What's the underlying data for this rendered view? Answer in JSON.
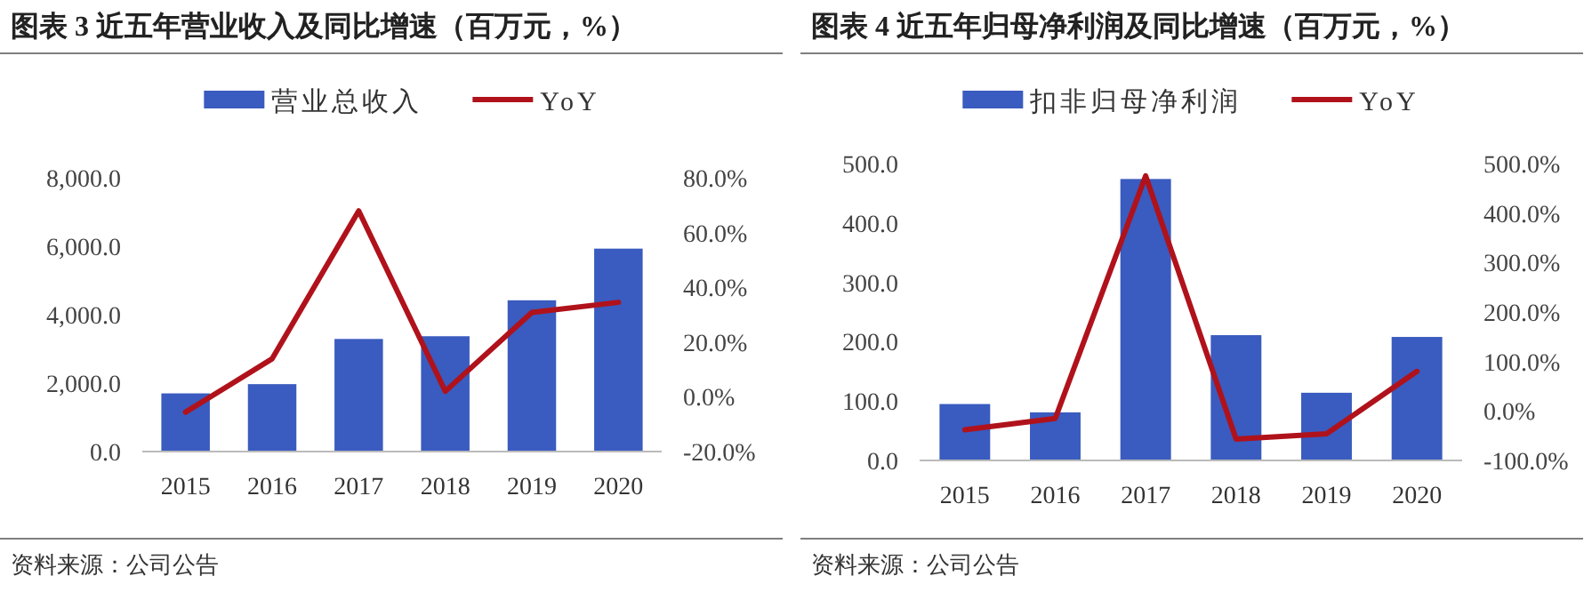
{
  "chart_data": [
    {
      "type": "bar",
      "title": "图表 3  近五年营业收入及同比增速（百万元，%）",
      "categories": [
        "2015",
        "2016",
        "2017",
        "2018",
        "2019",
        "2020"
      ],
      "series": [
        {
          "name": "营业总收入",
          "color": "#3a5bbf",
          "values": [
            1700,
            1970,
            3290,
            3370,
            4420,
            5930
          ]
        },
        {
          "name": "YoY",
          "type": "line",
          "axis": "y2",
          "color": "#b0121b",
          "values": [
            -5.6,
            13.9,
            67.9,
            2.0,
            30.8,
            34.5
          ]
        }
      ],
      "ylim": [
        0,
        8000
      ],
      "yticks": [
        {
          "value": 0,
          "label": "0.0"
        },
        {
          "value": 2000,
          "label": "2,000.0"
        },
        {
          "value": 4000,
          "label": "4,000.0"
        },
        {
          "value": 6000,
          "label": "6,000.0"
        },
        {
          "value": 8000,
          "label": "8,000.0"
        }
      ],
      "y2lim": [
        -20,
        80
      ],
      "y2ticks": [
        {
          "value": -20,
          "label": "-20.0%"
        },
        {
          "value": 0,
          "label": "0.0%"
        },
        {
          "value": 20,
          "label": "20.0%"
        },
        {
          "value": 40,
          "label": "40.0%"
        },
        {
          "value": 60,
          "label": "60.0%"
        },
        {
          "value": 80,
          "label": "80.0%"
        }
      ],
      "legend": "top",
      "annotations": [
        "资料来源：公司公告"
      ]
    },
    {
      "type": "bar",
      "title": "图表 4  近五年归母净利润及同比增速（百万元，%）",
      "categories": [
        "2015",
        "2016",
        "2017",
        "2018",
        "2019",
        "2020"
      ],
      "series": [
        {
          "name": "扣非归母净利润",
          "color": "#3a5bbf",
          "values": [
            95,
            81,
            474,
            211,
            114,
            208
          ]
        },
        {
          "name": "YoY",
          "type": "line",
          "axis": "y2",
          "color": "#b0121b",
          "values": [
            -38,
            -15,
            475,
            -57,
            -46,
            80
          ]
        }
      ],
      "ylim": [
        0,
        500
      ],
      "yticks": [
        {
          "value": 0,
          "label": "0.0"
        },
        {
          "value": 100,
          "label": "100.0"
        },
        {
          "value": 200,
          "label": "200.0"
        },
        {
          "value": 300,
          "label": "300.0"
        },
        {
          "value": 400,
          "label": "400.0"
        },
        {
          "value": 500,
          "label": "500.0"
        }
      ],
      "y2lim": [
        -100,
        500
      ],
      "y2ticks": [
        {
          "value": -100,
          "label": "-100.0%"
        },
        {
          "value": 0,
          "label": "0.0%"
        },
        {
          "value": 100,
          "label": "100.0%"
        },
        {
          "value": 200,
          "label": "200.0%"
        },
        {
          "value": 300,
          "label": "300.0%"
        },
        {
          "value": 400,
          "label": "400.0%"
        },
        {
          "value": 500,
          "label": "500.0%"
        }
      ],
      "legend": "top",
      "annotations": [
        "资料来源：公司公告"
      ]
    }
  ]
}
